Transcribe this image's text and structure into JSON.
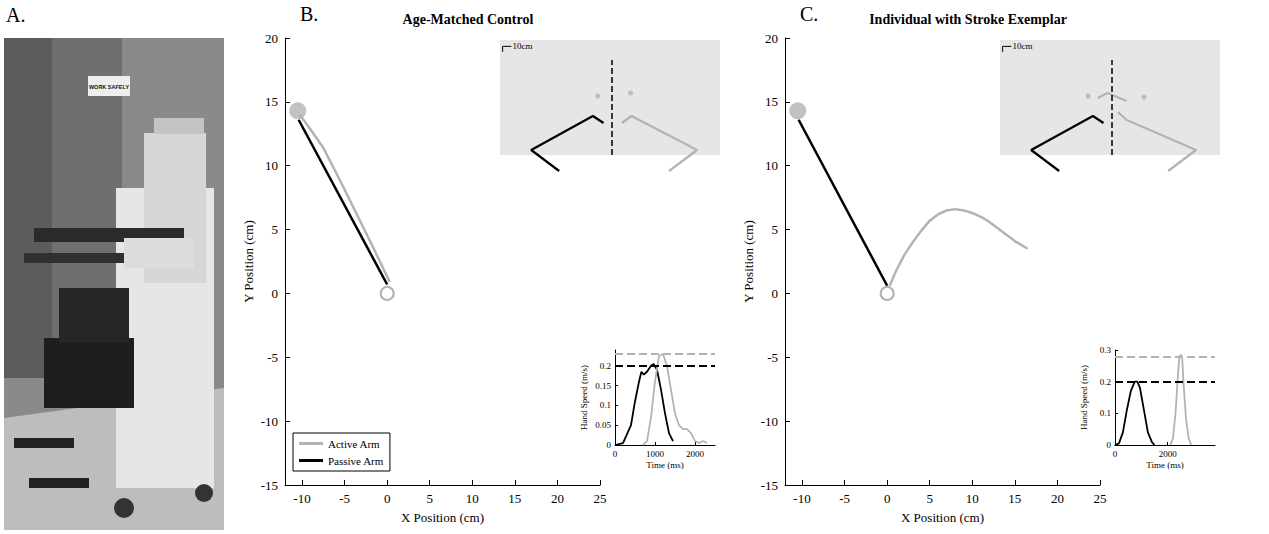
{
  "panel_A": {
    "panel": "A.",
    "type": "photo",
    "sign": "WORK SAFELY"
  },
  "chart_data": [
    {
      "type": "line",
      "panel": "B.",
      "title": "Age-Matched Control",
      "x_label": "X Position (cm)",
      "y_label": "Y Position (cm)",
      "xlim": [
        -12,
        25
      ],
      "xticks": [
        -10,
        -5,
        0,
        5,
        10,
        15,
        20,
        25
      ],
      "ylim": [
        -15,
        20
      ],
      "yticks": [
        -15,
        -10,
        -5,
        0,
        5,
        10,
        15,
        20
      ],
      "grid": false,
      "legend": "lower left",
      "start": {
        "x": 0,
        "y": 0,
        "marker": "emptyCircle",
        "color": "#9e9e9e"
      },
      "target": {
        "x": -10.5,
        "y": 14.3,
        "marker": "circle",
        "color": "#b3b3b3"
      },
      "series": [
        {
          "name": "Active Arm",
          "color": "#b3b3b3",
          "x": [
            0.3,
            -1.5,
            -3.5,
            -5.5,
            -7.5,
            -9.5,
            -10.3
          ],
          "y": [
            0.9,
            3.4,
            6.1,
            8.8,
            11.4,
            13.3,
            14
          ]
        },
        {
          "name": "Passive Arm",
          "color": "#000000",
          "x": [
            0,
            -10.4
          ],
          "y": [
            0.7,
            13.6
          ]
        }
      ]
    },
    {
      "type": "line",
      "tick_labels": false,
      "xlim": [
        -128,
        123
      ],
      "ylim": [
        0,
        154
      ],
      "workspace": {
        "x": [
          -128,
          123
        ],
        "y": [
          27.5,
          154
        ]
      },
      "midline": {
        "x": 0,
        "y": [
          27.5,
          132
        ]
      },
      "scale_bar": {
        "x": -125,
        "y": 147,
        "length": 10,
        "label": "10cm"
      },
      "series": [
        {
          "color": "#000000",
          "x": [
            -60.5,
            -92.4,
            -22,
            -9.9
          ],
          "y": [
            9.9,
            33,
            70.4,
            62.7
          ]
        },
        {
          "color": "#b3b3b3",
          "x": [
            64.9,
            96.8,
            22,
            11
          ],
          "y": [
            9.9,
            33,
            70.4,
            62.7
          ]
        }
      ],
      "targets": {
        "color": "#b3b3b3",
        "x": [
          -16.5,
          20.9
        ],
        "y": [
          92.4,
          95.7
        ]
      }
    },
    {
      "type": "line",
      "x_label": "Time (ms)",
      "y_label": "Hand Speed (m/s)",
      "xlim": [
        0,
        2500
      ],
      "xticks": [
        0,
        1000,
        2000
      ],
      "ylim": [
        0,
        0.24
      ],
      "yticks": [
        0,
        0.05,
        0.1,
        0.15,
        0.2
      ],
      "series": [
        {
          "color": "#000000",
          "peak": 0.205,
          "x": [
            0,
            200,
            400,
            500,
            600,
            660,
            720,
            800,
            900,
            965,
            1050,
            1150,
            1250,
            1350,
            1450
          ],
          "values": [
            0,
            0.005,
            0.05,
            0.11,
            0.16,
            0.185,
            0.178,
            0.185,
            0.2,
            0.205,
            0.19,
            0.14,
            0.08,
            0.03,
            0.01
          ]
        },
        {
          "color": "#b3b3b3",
          "peak": 0.23,
          "x": [
            700,
            800,
            900,
            1000,
            1100,
            1200,
            1300,
            1400,
            1500,
            1600,
            1700,
            1800,
            1900,
            2000,
            2100,
            2200,
            2300
          ],
          "values": [
            0,
            0.01,
            0.07,
            0.16,
            0.225,
            0.23,
            0.2,
            0.14,
            0.08,
            0.05,
            0.04,
            0.04,
            0.03,
            0.01,
            0.005,
            0.01,
            0.005
          ]
        }
      ]
    },
    {
      "type": "line",
      "panel": "C.",
      "title": "Individual with Stroke Exemplar",
      "x_label": "X Position (cm)",
      "y_label": "Y Position (cm)",
      "xlim": [
        -12,
        25
      ],
      "xticks": [
        -10,
        -5,
        0,
        5,
        10,
        15,
        20,
        25
      ],
      "ylim": [
        -15,
        20
      ],
      "yticks": [
        -15,
        -10,
        -5,
        0,
        5,
        10,
        15,
        20
      ],
      "grid": false,
      "start": {
        "x": 0,
        "y": 0,
        "marker": "emptyCircle",
        "color": "#9e9e9e"
      },
      "target": {
        "x": -10.5,
        "y": 14.3,
        "marker": "circle",
        "color": "#b3b3b3"
      },
      "series": [
        {
          "color": "#b3b3b3",
          "x": [
            0.3,
            1,
            2,
            3,
            4,
            5,
            6,
            7,
            8,
            9,
            10,
            11,
            12,
            13,
            14,
            15,
            16.5
          ],
          "y": [
            0.6,
            1.7,
            3,
            4,
            4.9,
            5.7,
            6.2,
            6.5,
            6.6,
            6.5,
            6.3,
            6,
            5.6,
            5.1,
            4.6,
            4.1,
            3.5
          ]
        },
        {
          "color": "#000000",
          "x": [
            0,
            -10.4
          ],
          "y": [
            0.6,
            13.6
          ]
        }
      ]
    },
    {
      "type": "line",
      "tick_labels": false,
      "xlim": [
        -128,
        123
      ],
      "ylim": [
        0,
        154
      ],
      "workspace": {
        "x": [
          -128,
          123
        ],
        "y": [
          27.5,
          154
        ]
      },
      "midline": {
        "x": 0,
        "y": [
          27.5,
          132
        ]
      },
      "scale_bar": {
        "x": -125,
        "y": 147,
        "length": 10,
        "label": "10cm"
      },
      "series": [
        {
          "color": "#000000",
          "x": [
            -60.5,
            -92.4,
            -22,
            -9.9
          ],
          "y": [
            9.9,
            33,
            70.4,
            62.7
          ]
        },
        {
          "color": "#b3b3b3",
          "x": [
            63.8,
            95.7,
            16.5,
            6.6
          ],
          "y": [
            9.9,
            33,
            66,
            74.8
          ]
        },
        {
          "color": "#b3b3b3",
          "x": [
            -16.5,
            -5.5,
            5.5,
            16.5
          ],
          "y": [
            90.2,
            95.7,
            91.3,
            86.9
          ]
        }
      ],
      "targets": {
        "color": "#b3b3b3",
        "x": [
          -27.5,
          36.3
        ],
        "y": [
          92.4,
          91.3
        ]
      }
    },
    {
      "type": "line",
      "x_label": "Time (ms)",
      "y_label": "Hand Speed (m/s)",
      "xlim": [
        0,
        3800
      ],
      "xticks": [
        0,
        2000
      ],
      "ylim": [
        0,
        0.3
      ],
      "yticks": [
        0,
        0.1,
        0.2,
        0.3
      ],
      "series": [
        {
          "color": "#000000",
          "peak": 0.2,
          "x": [
            0,
            150,
            300,
            450,
            600,
            750,
            850,
            950,
            1100,
            1250,
            1400,
            1500
          ],
          "values": [
            0,
            0.005,
            0.04,
            0.11,
            0.17,
            0.2,
            0.2,
            0.18,
            0.11,
            0.04,
            0.01,
            0
          ]
        },
        {
          "color": "#b3b3b3",
          "peak": 0.285,
          "x": [
            2100,
            2200,
            2300,
            2400,
            2450,
            2500,
            2550,
            2600,
            2700,
            2800,
            2900
          ],
          "values": [
            0,
            0.02,
            0.1,
            0.23,
            0.28,
            0.285,
            0.28,
            0.2,
            0.08,
            0.02,
            0
          ]
        }
      ]
    }
  ]
}
